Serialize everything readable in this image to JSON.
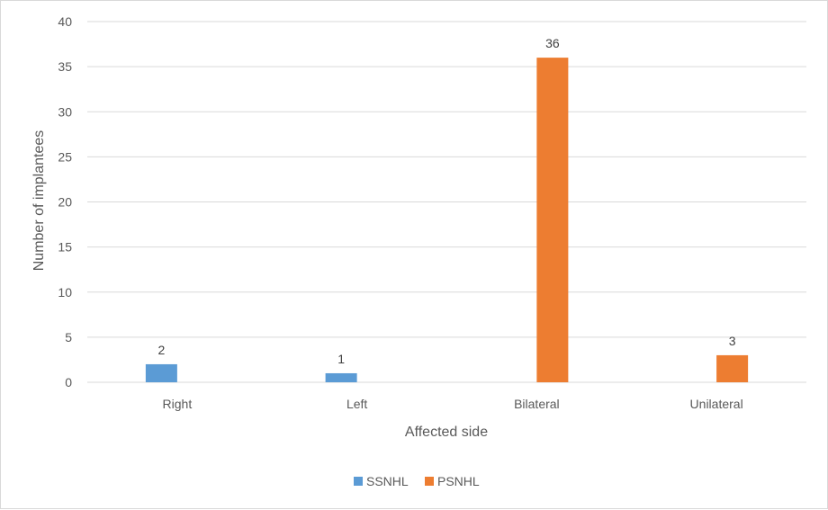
{
  "chart_data": {
    "type": "bar",
    "categories": [
      "Right",
      "Left",
      "Bilateral",
      "Unilateral"
    ],
    "series": [
      {
        "name": "SSNHL",
        "values": [
          2,
          1,
          null,
          null
        ],
        "color": "#5b9bd5"
      },
      {
        "name": "PSNHL",
        "values": [
          null,
          null,
          36,
          3
        ],
        "color": "#ed7d31"
      }
    ],
    "title": "",
    "xlabel": "Affected side",
    "ylabel": "Number of implantees",
    "ylim": [
      0,
      40
    ],
    "yticks": [
      0,
      5,
      10,
      15,
      20,
      25,
      30,
      35,
      40
    ],
    "grid": true,
    "legend_position": "bottom",
    "gridline_color": "#d9d9d9",
    "text_color": "#595959"
  }
}
